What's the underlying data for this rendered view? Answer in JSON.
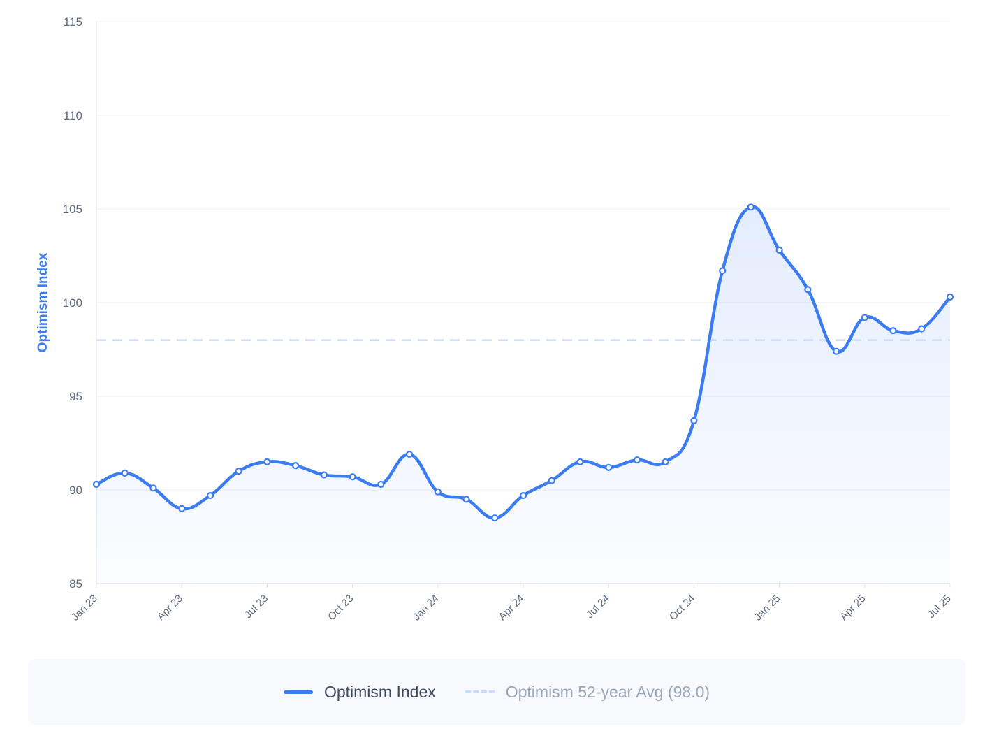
{
  "chart_data": {
    "type": "line",
    "ylabel": "Optimism Index",
    "xlabel": "",
    "ylim": [
      85,
      115
    ],
    "y_ticks": [
      "115",
      "110",
      "105",
      "100",
      "95",
      "90",
      "85"
    ],
    "x_tick_labels": [
      "Jan 23",
      "Apr 23",
      "Jul 23",
      "Oct 23",
      "Jan 24",
      "Apr 24",
      "Jul 24",
      "Oct 24",
      "Jan 25",
      "Apr 25",
      "Jul 25"
    ],
    "x": [
      "Jan 23",
      "Feb 23",
      "Mar 23",
      "Apr 23",
      "May 23",
      "Jun 23",
      "Jul 23",
      "Aug 23",
      "Sep 23",
      "Oct 23",
      "Nov 23",
      "Dec 23",
      "Jan 24",
      "Feb 24",
      "Mar 24",
      "Apr 24",
      "May 24",
      "Jun 24",
      "Jul 24",
      "Aug 24",
      "Sep 24",
      "Oct 24",
      "Nov 24",
      "Dec 24",
      "Jan 25",
      "Feb 25",
      "Mar 25",
      "Apr 25",
      "May 25",
      "Jun 25",
      "Jul 25"
    ],
    "series": [
      {
        "name": "Optimism Index",
        "color": "#3b7cf0",
        "values": [
          90.3,
          90.9,
          90.1,
          89.0,
          89.7,
          91.0,
          91.5,
          91.3,
          90.8,
          90.7,
          90.3,
          91.9,
          89.9,
          89.5,
          88.5,
          89.7,
          90.5,
          91.5,
          91.2,
          91.6,
          91.5,
          93.7,
          101.7,
          105.1,
          102.8,
          100.7,
          97.4,
          99.2,
          98.5,
          98.6,
          100.3
        ]
      }
    ],
    "reference_line": {
      "name": "Optimism 52-year Avg (98.0)",
      "value": 98.0,
      "color": "#c9dcfb",
      "style": "dashed"
    },
    "grid": true,
    "area_fill": true
  },
  "legend": {
    "position": "bottom",
    "items": [
      {
        "label": "Optimism Index",
        "color": "#3b7cf0"
      },
      {
        "label": "Optimism 52-year Avg (98.0)",
        "color": "#c9dcfb"
      }
    ]
  }
}
